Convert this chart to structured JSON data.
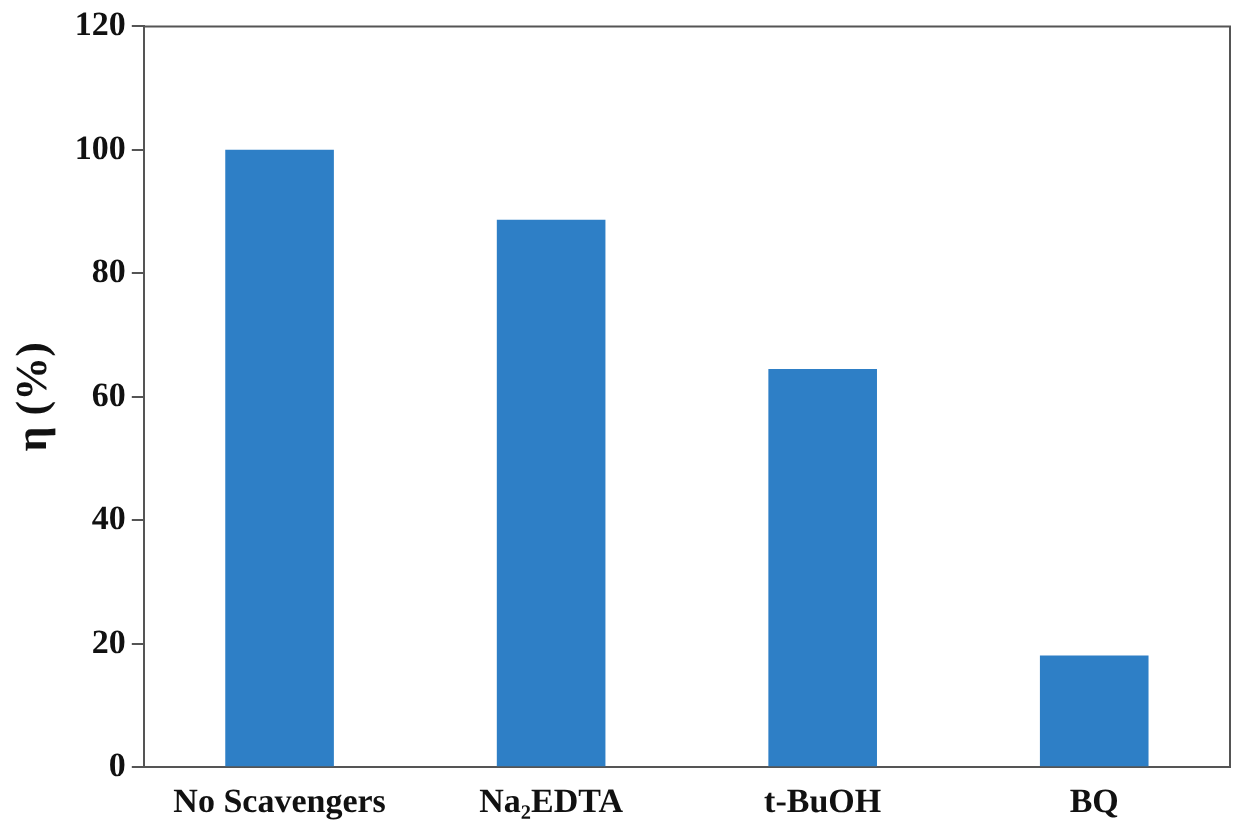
{
  "chart_data": {
    "type": "bar",
    "ylabel": "η (%)",
    "categories": [
      "No Scavengers",
      "Na₂EDTA",
      "t-BuOH",
      "BQ"
    ],
    "values": [
      100,
      88.7,
      64.5,
      18.1
    ],
    "color": "#2e7fc6",
    "ylim": [
      0,
      120
    ],
    "yticks": [
      0,
      20,
      40,
      60,
      80,
      100,
      120
    ],
    "grid": false,
    "legend": false
  }
}
